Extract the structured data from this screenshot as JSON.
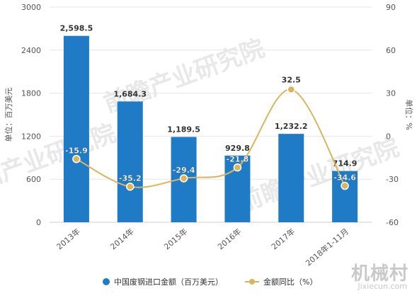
{
  "chart_data": {
    "type": "bar",
    "categories": [
      "2013年",
      "2014年",
      "2015年",
      "2016年",
      "2017年",
      "2018年1-11月"
    ],
    "series": [
      {
        "name": "中国废钢进口金额（百万美元）",
        "type": "bar",
        "axis": "left",
        "values": [
          2598.5,
          1684.3,
          1189.5,
          929.8,
          1232.2,
          714.9
        ],
        "labels": [
          "2,598.5",
          "1,684.3",
          "1,189.5",
          "929.8",
          "1,232.2",
          "714.9"
        ]
      },
      {
        "name": "金额同比（%）",
        "type": "line",
        "axis": "right",
        "values": [
          -15.9,
          -35.2,
          -29.4,
          -21.8,
          32.5,
          -34.6
        ],
        "labels": [
          "-15.9",
          "-35.2",
          "-29.4",
          "-21.8",
          "32.5",
          "-34.6"
        ]
      }
    ],
    "ylabel_left": "单位：百万美元",
    "ylabel_right": "单位：%",
    "ylim_left": [
      0,
      3000
    ],
    "yticks_left": [
      0,
      600,
      1200,
      1800,
      2400,
      3000
    ],
    "ylim_right": [
      -60,
      90
    ],
    "yticks_right": [
      -60,
      -30,
      0,
      30,
      60,
      90
    ],
    "grid": true,
    "legend_position": "bottom-center"
  },
  "colors": {
    "bar": "#1f7bc6",
    "line": "#d9b55c",
    "marker": "#d9b55c",
    "grid": "#e6e6e6",
    "axis_text": "#555555"
  },
  "watermarks": {
    "brand": "前瞻产业研究院",
    "site_cn": "机械村",
    "site_en": "Jixiecun.com"
  }
}
